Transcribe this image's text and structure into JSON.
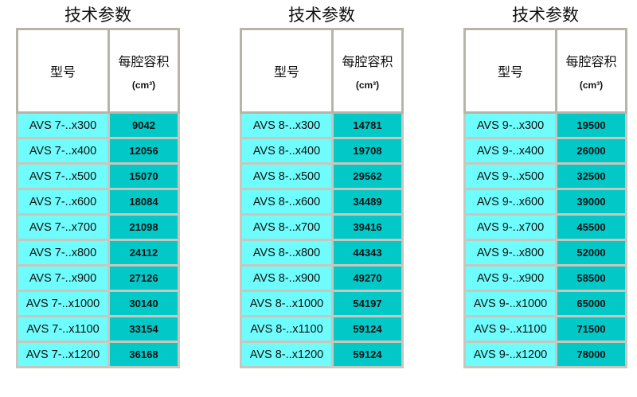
{
  "tables": [
    {
      "title": "技术参数",
      "header": {
        "model": "型号",
        "volume": "每腔容积",
        "unit": "(cm³)"
      },
      "rows": [
        [
          "AVS 7-..x300",
          "9042"
        ],
        [
          "AVS 7-..x400",
          "12056"
        ],
        [
          "AVS 7-..x500",
          "15070"
        ],
        [
          "AVS 7-..x600",
          "18084"
        ],
        [
          "AVS 7-..x700",
          "21098"
        ],
        [
          "AVS 7-..x800",
          "24112"
        ],
        [
          "AVS 7-..x900",
          "27126"
        ],
        [
          "AVS 7-..x1000",
          "30140"
        ],
        [
          "AVS 7-..x1100",
          "33154"
        ],
        [
          "AVS 7-..x1200",
          "36168"
        ]
      ]
    },
    {
      "title": "技术参数",
      "header": {
        "model": "型号",
        "volume": "每腔容积",
        "unit": "(cm³)"
      },
      "rows": [
        [
          "AVS 8-..x300",
          "14781"
        ],
        [
          "AVS 8-..x400",
          "19708"
        ],
        [
          "AVS 8-..x500",
          "29562"
        ],
        [
          "AVS 8-..x600",
          "34489"
        ],
        [
          "AVS 8-..x700",
          "39416"
        ],
        [
          "AVS 8-..x800",
          "44343"
        ],
        [
          "AVS 8-..x900",
          "49270"
        ],
        [
          "AVS 8-..x1000",
          "54197"
        ],
        [
          "AVS 8-..x1100",
          "59124"
        ],
        [
          "AVS 8-..x1200",
          "59124"
        ]
      ]
    },
    {
      "title": "技术参数",
      "header": {
        "model": "型号",
        "volume": "每腔容积",
        "unit": "(cm³)"
      },
      "rows": [
        [
          "AVS 9-..x300",
          "19500"
        ],
        [
          "AVS 9-..x400",
          "26000"
        ],
        [
          "AVS 9-..x500",
          "32500"
        ],
        [
          "AVS 9-..x600",
          "39000"
        ],
        [
          "AVS 9-..x700",
          "45500"
        ],
        [
          "AVS 9-..x800",
          "52000"
        ],
        [
          "AVS 9-..x900",
          "58500"
        ],
        [
          "AVS 9-..x1000",
          "65000"
        ],
        [
          "AVS 9-..x1100",
          "71500"
        ],
        [
          "AVS 9-..x1200",
          "78000"
        ]
      ]
    }
  ],
  "colors": {
    "model_cell": "#6ffcfc",
    "value_cell": "#03c8c8",
    "border": "#c9c6bb"
  }
}
